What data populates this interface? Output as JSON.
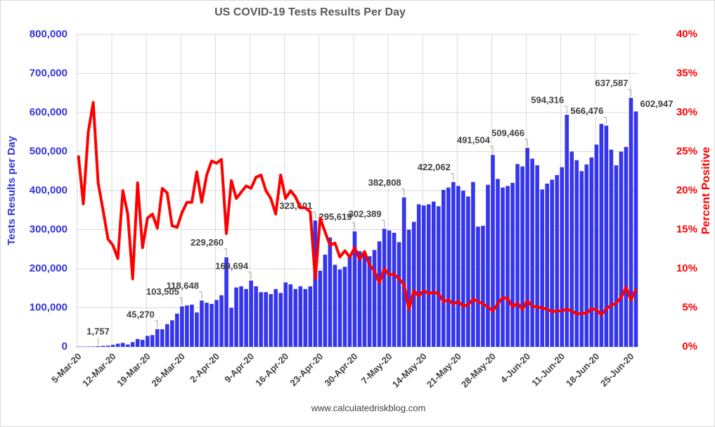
{
  "chart_data": {
    "type": "bar",
    "title": "US COVID-19 Tests Results Per Day",
    "ylabel": "Tests Results per Day",
    "y2label": "Percent Positive",
    "source": "www.calculatedriskblog.com",
    "grid": true,
    "categories": [
      "5-Mar-20",
      null,
      null,
      null,
      null,
      null,
      null,
      "12-Mar-20",
      null,
      null,
      null,
      null,
      null,
      null,
      "19-Mar-20",
      null,
      null,
      null,
      null,
      null,
      null,
      "26-Mar-20",
      null,
      null,
      null,
      null,
      null,
      null,
      "2-Apr-20",
      null,
      null,
      null,
      null,
      null,
      null,
      "9-Apr-20",
      null,
      null,
      null,
      null,
      null,
      null,
      "16-Apr-20",
      null,
      null,
      null,
      null,
      null,
      null,
      "23-Apr-20",
      null,
      null,
      null,
      null,
      null,
      null,
      "30-Apr-20",
      null,
      null,
      null,
      null,
      null,
      null,
      "7-May-20",
      null,
      null,
      null,
      null,
      null,
      null,
      "14-May-20",
      null,
      null,
      null,
      null,
      null,
      null,
      "21-May-20",
      null,
      null,
      null,
      null,
      null,
      null,
      "28-May-20",
      null,
      null,
      null,
      null,
      null,
      null,
      "4-Jun-20",
      null,
      null,
      null,
      null,
      null,
      null,
      "11-Jun-20",
      null,
      null,
      null,
      null,
      null,
      null,
      "18-Jun-20",
      null,
      null,
      null,
      null,
      null,
      null,
      "25-Jun-20",
      null
    ],
    "ylim": [
      0,
      800000
    ],
    "yticks": [
      0,
      {
        "value": 100000,
        "label": "100,000"
      },
      {
        "value": 200000,
        "label": "200,000"
      },
      {
        "value": 300000,
        "label": "300,000"
      },
      {
        "value": 400000,
        "label": "400,000"
      },
      {
        "value": 500000,
        "label": "500,000"
      },
      {
        "value": 600000,
        "label": "600,000"
      },
      {
        "value": 700000,
        "label": "700,000"
      },
      {
        "value": 800000,
        "label": "800,000"
      }
    ],
    "y2lim": [
      0,
      40
    ],
    "y2ticks": [
      {
        "value": 0,
        "label": "0%"
      },
      {
        "value": 5,
        "label": "5%"
      },
      {
        "value": 10,
        "label": "10%"
      },
      {
        "value": 15,
        "label": "15%"
      },
      {
        "value": 20,
        "label": "20%"
      },
      {
        "value": 25,
        "label": "25%"
      },
      {
        "value": 30,
        "label": "30%"
      },
      {
        "value": 35,
        "label": "35%"
      },
      {
        "value": 40,
        "label": "40%"
      }
    ],
    "series": [
      {
        "type": "bar",
        "color": "#3535ee",
        "values": [
          500,
          600,
          800,
          1000,
          1757,
          2500,
          3000,
          5000,
          8000,
          10000,
          6000,
          12000,
          20000,
          18000,
          28000,
          30000,
          45270,
          45000,
          58000,
          68000,
          85000,
          103505,
          106000,
          108000,
          88000,
          118648,
          113000,
          110000,
          120000,
          132000,
          229260,
          100000,
          152000,
          155000,
          148000,
          169694,
          155000,
          140000,
          140000,
          135000,
          148000,
          138000,
          165000,
          160000,
          148000,
          155000,
          148000,
          155000,
          323601,
          195000,
          236000,
          280000,
          210000,
          198000,
          205000,
          235000,
          295619,
          245000,
          238000,
          232000,
          248000,
          270000,
          302389,
          298000,
          292000,
          268000,
          382808,
          300000,
          320000,
          365000,
          362000,
          365000,
          372000,
          360000,
          402000,
          408000,
          422062,
          412000,
          400000,
          385000,
          422000,
          308000,
          310000,
          415000,
          491504,
          430000,
          408000,
          412000,
          420000,
          468000,
          462000,
          509466,
          482000,
          465000,
          403000,
          418000,
          428000,
          440000,
          460000,
          594316,
          500000,
          478000,
          450000,
          467000,
          485000,
          518000,
          571000,
          566476,
          505000,
          465000,
          500000,
          512000,
          637587,
          602947
        ],
        "value_labels": [
          null,
          null,
          null,
          null,
          "1,757",
          null,
          null,
          null,
          null,
          null,
          null,
          null,
          null,
          null,
          null,
          null,
          "45,270",
          null,
          null,
          null,
          null,
          "103,505",
          null,
          null,
          null,
          "118,648",
          null,
          null,
          null,
          null,
          "229,260",
          null,
          null,
          null,
          null,
          "169,694",
          null,
          null,
          null,
          null,
          null,
          null,
          null,
          null,
          null,
          null,
          null,
          null,
          "323,601",
          null,
          null,
          null,
          null,
          null,
          null,
          null,
          "295,619",
          null,
          null,
          null,
          null,
          null,
          "302,389",
          null,
          null,
          null,
          "382,808",
          null,
          null,
          null,
          null,
          null,
          null,
          null,
          null,
          null,
          "422,062",
          null,
          null,
          null,
          null,
          null,
          null,
          null,
          "491,504",
          null,
          null,
          null,
          null,
          null,
          null,
          "509,466",
          null,
          null,
          null,
          null,
          null,
          null,
          null,
          "594,316",
          null,
          null,
          null,
          null,
          null,
          null,
          null,
          "566,476",
          null,
          null,
          null,
          null,
          "637,587",
          "602,947"
        ]
      },
      {
        "type": "line",
        "axis": "y2",
        "color": "#ff0000",
        "values": [
          24.5,
          18.3,
          27.5,
          31.3,
          21,
          17.5,
          13.8,
          13,
          11.3,
          20,
          17,
          8.7,
          21,
          12.7,
          16.5,
          17,
          15.2,
          20.3,
          19.7,
          15.5,
          15.3,
          17.2,
          18.5,
          18.5,
          22.4,
          18.5,
          22,
          23.8,
          23.5,
          24,
          14.5,
          21.3,
          19,
          19.8,
          20.6,
          20.3,
          21.7,
          22,
          20,
          19,
          17,
          22,
          19,
          20,
          19.2,
          17.8,
          17.8,
          17.3,
          8.7,
          16.5,
          14.7,
          13,
          13.3,
          11.5,
          12.3,
          11.5,
          12.7,
          11.2,
          12.2,
          10.5,
          9.7,
          8.2,
          10,
          9.2,
          9.3,
          8.7,
          8,
          4.8,
          7.2,
          6.5,
          7.2,
          6.8,
          7,
          6.8,
          5.8,
          6,
          5.5,
          5.8,
          5.2,
          5.4,
          6.1,
          5.8,
          5.5,
          5.1,
          4.6,
          5.5,
          6.3,
          6.2,
          5.1,
          5.6,
          4.8,
          5.9,
          5.2,
          5.1,
          5,
          4.8,
          4.5,
          4.6,
          4.6,
          4.8,
          4.6,
          4.2,
          4.3,
          4.3,
          4.9,
          4.7,
          4.1,
          4.9,
          5.3,
          5.6,
          6.3,
          7.6,
          6.0,
          7.4
        ]
      }
    ]
  }
}
